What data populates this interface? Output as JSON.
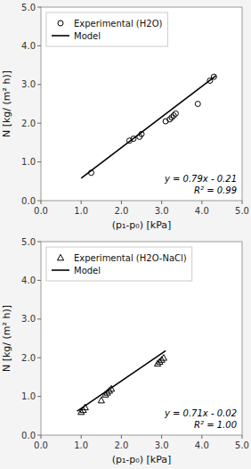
{
  "chart_data": [
    {
      "type": "scatter",
      "x_label": "(p₁-p₀) [kPa]",
      "y_label": "N [kg/ (m² h)]",
      "series": [
        {
          "name": "Experimental (H2O)",
          "type": "scatter",
          "marker": "circle",
          "color": "#000000",
          "x": [
            1.25,
            2.2,
            2.3,
            2.45,
            2.5,
            3.1,
            3.2,
            3.25,
            3.3,
            3.35,
            3.9,
            4.2,
            4.3
          ],
          "values": [
            0.72,
            1.55,
            1.6,
            1.65,
            1.72,
            2.05,
            2.1,
            2.15,
            2.2,
            2.25,
            2.5,
            3.1,
            3.2
          ]
        },
        {
          "name": "Model",
          "type": "line",
          "line_style": "solid",
          "color": "#000000",
          "x": [
            1.0,
            4.35
          ],
          "values": [
            0.58,
            3.2265
          ]
        }
      ],
      "annotations": [
        {
          "text": "y = 0.79x - 0.21"
        },
        {
          "text": "R² = 0.99"
        }
      ],
      "xlim": [
        0.0,
        5.0
      ],
      "ylim": [
        0.0,
        5.0
      ],
      "xticks": [
        {
          "value": 0.0,
          "label": "0.0"
        },
        {
          "value": 1.0,
          "label": "1.0"
        },
        {
          "value": 2.0,
          "label": "2.0"
        },
        {
          "value": 3.0,
          "label": "3.0"
        },
        {
          "value": 4.0,
          "label": "4.0"
        },
        {
          "value": 5.0,
          "label": "5.0"
        }
      ],
      "yticks": [
        {
          "value": 0.0,
          "label": "0.0"
        },
        {
          "value": 1.0,
          "label": "1.0"
        },
        {
          "value": 2.0,
          "label": "2.0"
        },
        {
          "value": 3.0,
          "label": "3.0"
        },
        {
          "value": 4.0,
          "label": "4.0"
        },
        {
          "value": 5.0,
          "label": "5.0"
        }
      ],
      "grid": false,
      "legend": "upper left"
    },
    {
      "type": "scatter",
      "x_label": "(p₁-p₀) [kPa]",
      "y_label": "N [kg/ (m² h)]",
      "series": [
        {
          "name": "Experimental (H2O-NaCl)",
          "type": "scatter",
          "marker": "triangle",
          "color": "#000000",
          "x": [
            1.0,
            1.05,
            1.1,
            1.5,
            1.6,
            1.65,
            1.7,
            1.75,
            2.9,
            2.95,
            3.0,
            3.05
          ],
          "values": [
            0.6,
            0.65,
            0.72,
            0.9,
            1.05,
            1.1,
            1.15,
            1.2,
            1.85,
            1.9,
            1.95,
            2.0
          ]
        },
        {
          "name": "Model",
          "type": "line",
          "line_style": "solid",
          "color": "#000000",
          "x": [
            0.9,
            3.1
          ],
          "values": [
            0.619,
            2.181
          ]
        }
      ],
      "annotations": [
        {
          "text": "y = 0.71x - 0.02"
        },
        {
          "text": "R² = 1.00"
        }
      ],
      "xlim": [
        0.0,
        5.0
      ],
      "ylim": [
        0.0,
        5.0
      ],
      "xticks": [
        {
          "value": 0.0,
          "label": "0.0"
        },
        {
          "value": 1.0,
          "label": "1.0"
        },
        {
          "value": 2.0,
          "label": "2.0"
        },
        {
          "value": 3.0,
          "label": "3.0"
        },
        {
          "value": 4.0,
          "label": "4.0"
        },
        {
          "value": 5.0,
          "label": "5.0"
        }
      ],
      "yticks": [
        {
          "value": 0.0,
          "label": "0.0"
        },
        {
          "value": 1.0,
          "label": "1.0"
        },
        {
          "value": 2.0,
          "label": "2.0"
        },
        {
          "value": 3.0,
          "label": "3.0"
        },
        {
          "value": 4.0,
          "label": "4.0"
        },
        {
          "value": 5.0,
          "label": "5.0"
        }
      ],
      "grid": false,
      "legend": "upper left"
    }
  ]
}
